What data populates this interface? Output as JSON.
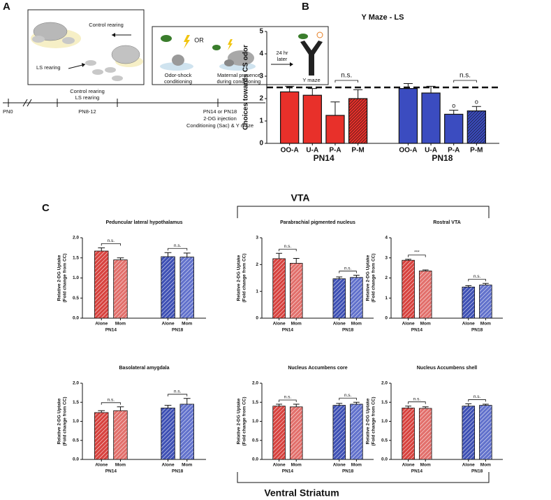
{
  "panel_labels": [
    "A",
    "B",
    "C"
  ],
  "diagram": {
    "rearing": {
      "control": "Control rearing",
      "ls": "LS rearing"
    },
    "conditioning": {
      "odor_shock": [
        "Odor-shock",
        "conditioning"
      ],
      "or": "OR",
      "maternal": [
        "Maternal presence",
        "during conditioning"
      ],
      "delay": [
        "24 hr",
        "later"
      ],
      "test": "Y maze"
    },
    "timeline": {
      "start": "PN0",
      "rearing": [
        "Control rearing",
        "LS rearing"
      ],
      "window": "PN8-12",
      "test": [
        "PN14 or PN18",
        "2-DG injection",
        "Conditioning (Sac) & Y maze"
      ]
    }
  },
  "regions": {
    "top": "VTA",
    "bottom": "Ventral Striatum"
  },
  "chart_data": [
    {
      "type": "bar",
      "title": "Y Maze - LS",
      "ylabel": [
        "Choices towards CS odor"
      ],
      "categories": [
        "OO-A",
        "U-A",
        "P-A",
        "P-M",
        "OO-A",
        "U-A",
        "P-A",
        "P-M"
      ],
      "group_labels": [
        "PN14",
        "PN18"
      ],
      "values": [
        2.3,
        2.15,
        1.25,
        2.0,
        2.45,
        2.25,
        1.3,
        1.45
      ],
      "errors": [
        0.25,
        0.3,
        0.6,
        0.4,
        0.22,
        0.3,
        0.18,
        0.2
      ],
      "colors": [
        "#e8302a",
        "#e8302a",
        "#e8302a",
        "#e8302a",
        "#3b4cc0",
        "#3b4cc0",
        "#3b4cc0",
        "#3b4cc0"
      ],
      "hatched": [
        false,
        false,
        false,
        true,
        false,
        false,
        false,
        true
      ],
      "hatch_color": "#111111",
      "reference_line": 2.5,
      "annotations": [
        "n.s.",
        "n.s."
      ],
      "significance_marks": [
        "o",
        "o"
      ],
      "ylim": [
        0,
        5
      ],
      "yticks": [
        0,
        1,
        2,
        3,
        4,
        5
      ]
    },
    {
      "type": "bar",
      "title": "Peduncular lateral hypothalamus",
      "ylabel": [
        "Relative 2-DG Uptake",
        "(Fold change from CC)"
      ],
      "categories": [
        "Alone",
        "Mom",
        "Alone",
        "Mom"
      ],
      "group_labels": [
        "PN14",
        "PN18"
      ],
      "values": [
        1.67,
        1.45,
        1.53,
        1.52
      ],
      "errors": [
        0.08,
        0.05,
        0.1,
        0.1
      ],
      "colors": [
        "#d8433f",
        "#e2706c",
        "#3f51b5",
        "#6272cc"
      ],
      "hatched": true,
      "hatch_color": "#ffffff",
      "annotations": [
        "n.s.",
        "n.s."
      ],
      "ylim": [
        0,
        2
      ],
      "yticks": [
        {
          "value": 0,
          "label": "0.0"
        },
        0.5,
        {
          "value": 1,
          "label": "1.0"
        },
        1.5,
        {
          "value": 2,
          "label": "2.0"
        }
      ]
    },
    {
      "type": "bar",
      "title": "Parabrachial pigmented nucleus",
      "ylabel": [
        "Relative 2-DG Uptake",
        "(Fold change from CC)"
      ],
      "categories": [
        "Alone",
        "Mom",
        "Alone",
        "Mom"
      ],
      "group_labels": [
        "PN14",
        "PN18"
      ],
      "values": [
        2.22,
        2.05,
        1.47,
        1.52
      ],
      "errors": [
        0.2,
        0.18,
        0.07,
        0.08
      ],
      "colors": [
        "#d8433f",
        "#e2706c",
        "#3f51b5",
        "#6272cc"
      ],
      "hatched": true,
      "hatch_color": "#ffffff",
      "annotations": [
        "n.s.",
        "n.s."
      ],
      "ylim": [
        0,
        3
      ],
      "yticks": [
        0,
        1,
        2,
        3
      ]
    },
    {
      "type": "bar",
      "title": "Rostral VTA",
      "ylabel": [
        "Relative 2-DG Uptake",
        "(Fold change from CC)"
      ],
      "categories": [
        "Alone",
        "Mom",
        "Alone",
        "Mom"
      ],
      "group_labels": [
        "PN14",
        "PN18"
      ],
      "values": [
        2.88,
        2.35,
        1.55,
        1.65
      ],
      "errors": [
        0.05,
        0.05,
        0.07,
        0.08
      ],
      "colors": [
        "#d8433f",
        "#e2706c",
        "#3f51b5",
        "#6272cc"
      ],
      "hatched": true,
      "hatch_color": "#ffffff",
      "annotations": [
        "***",
        "n.s."
      ],
      "ylim": [
        0,
        4
      ],
      "yticks": [
        0,
        1,
        2,
        3,
        4
      ]
    },
    {
      "type": "bar",
      "title": "Basolateral amygdala",
      "ylabel": [
        "Relative 2-DG Uptake",
        "(Fold change from CC)"
      ],
      "categories": [
        "Alone",
        "Mom",
        "Alone",
        "Mom"
      ],
      "group_labels": [
        "PN14",
        "PN18"
      ],
      "values": [
        1.23,
        1.28,
        1.35,
        1.45
      ],
      "errors": [
        0.05,
        0.1,
        0.07,
        0.15
      ],
      "colors": [
        "#d8433f",
        "#e2706c",
        "#3f51b5",
        "#6272cc"
      ],
      "hatched": true,
      "hatch_color": "#ffffff",
      "annotations": [
        "n.s.",
        "n.s."
      ],
      "ylim": [
        0,
        2
      ],
      "yticks": [
        {
          "value": 0,
          "label": "0.0"
        },
        0.5,
        {
          "value": 1,
          "label": "1.0"
        },
        1.5,
        {
          "value": 2,
          "label": "2.0"
        }
      ]
    },
    {
      "type": "bar",
      "title": "Nucleus Accumbens core",
      "ylabel": [
        "Relative 2-DG Uptake",
        "(Fold change from CC)"
      ],
      "categories": [
        "Alone",
        "Mom",
        "Alone",
        "Mom"
      ],
      "group_labels": [
        "PN14",
        "PN18"
      ],
      "values": [
        1.4,
        1.38,
        1.42,
        1.45
      ],
      "errors": [
        0.05,
        0.07,
        0.05,
        0.05
      ],
      "colors": [
        "#d8433f",
        "#e2706c",
        "#3f51b5",
        "#6272cc"
      ],
      "hatched": true,
      "hatch_color": "#ffffff",
      "annotations": [
        "n.s.",
        "n.s."
      ],
      "ylim": [
        0,
        2
      ],
      "yticks": [
        {
          "value": 0,
          "label": "0.0"
        },
        0.5,
        {
          "value": 1,
          "label": "1.0"
        },
        1.5,
        {
          "value": 2,
          "label": "2.0"
        }
      ]
    },
    {
      "type": "bar",
      "title": "Nucleus Accumbens shell",
      "ylabel": [
        "Relative 2-DG Uptake",
        "(Fold change from CC)"
      ],
      "categories": [
        "Alone",
        "Mom",
        "Alone",
        "Mom"
      ],
      "group_labels": [
        "PN14",
        "PN18"
      ],
      "values": [
        1.35,
        1.34,
        1.4,
        1.42
      ],
      "errors": [
        0.05,
        0.04,
        0.06,
        0.03
      ],
      "colors": [
        "#d8433f",
        "#e2706c",
        "#3f51b5",
        "#6272cc"
      ],
      "hatched": true,
      "hatch_color": "#ffffff",
      "annotations": [
        "n.s.",
        "n.s."
      ],
      "ylim": [
        0,
        2
      ],
      "yticks": [
        {
          "value": 0,
          "label": "0.0"
        },
        0.5,
        {
          "value": 1,
          "label": "1.0"
        },
        1.5,
        {
          "value": 2,
          "label": "2.0"
        }
      ]
    }
  ]
}
